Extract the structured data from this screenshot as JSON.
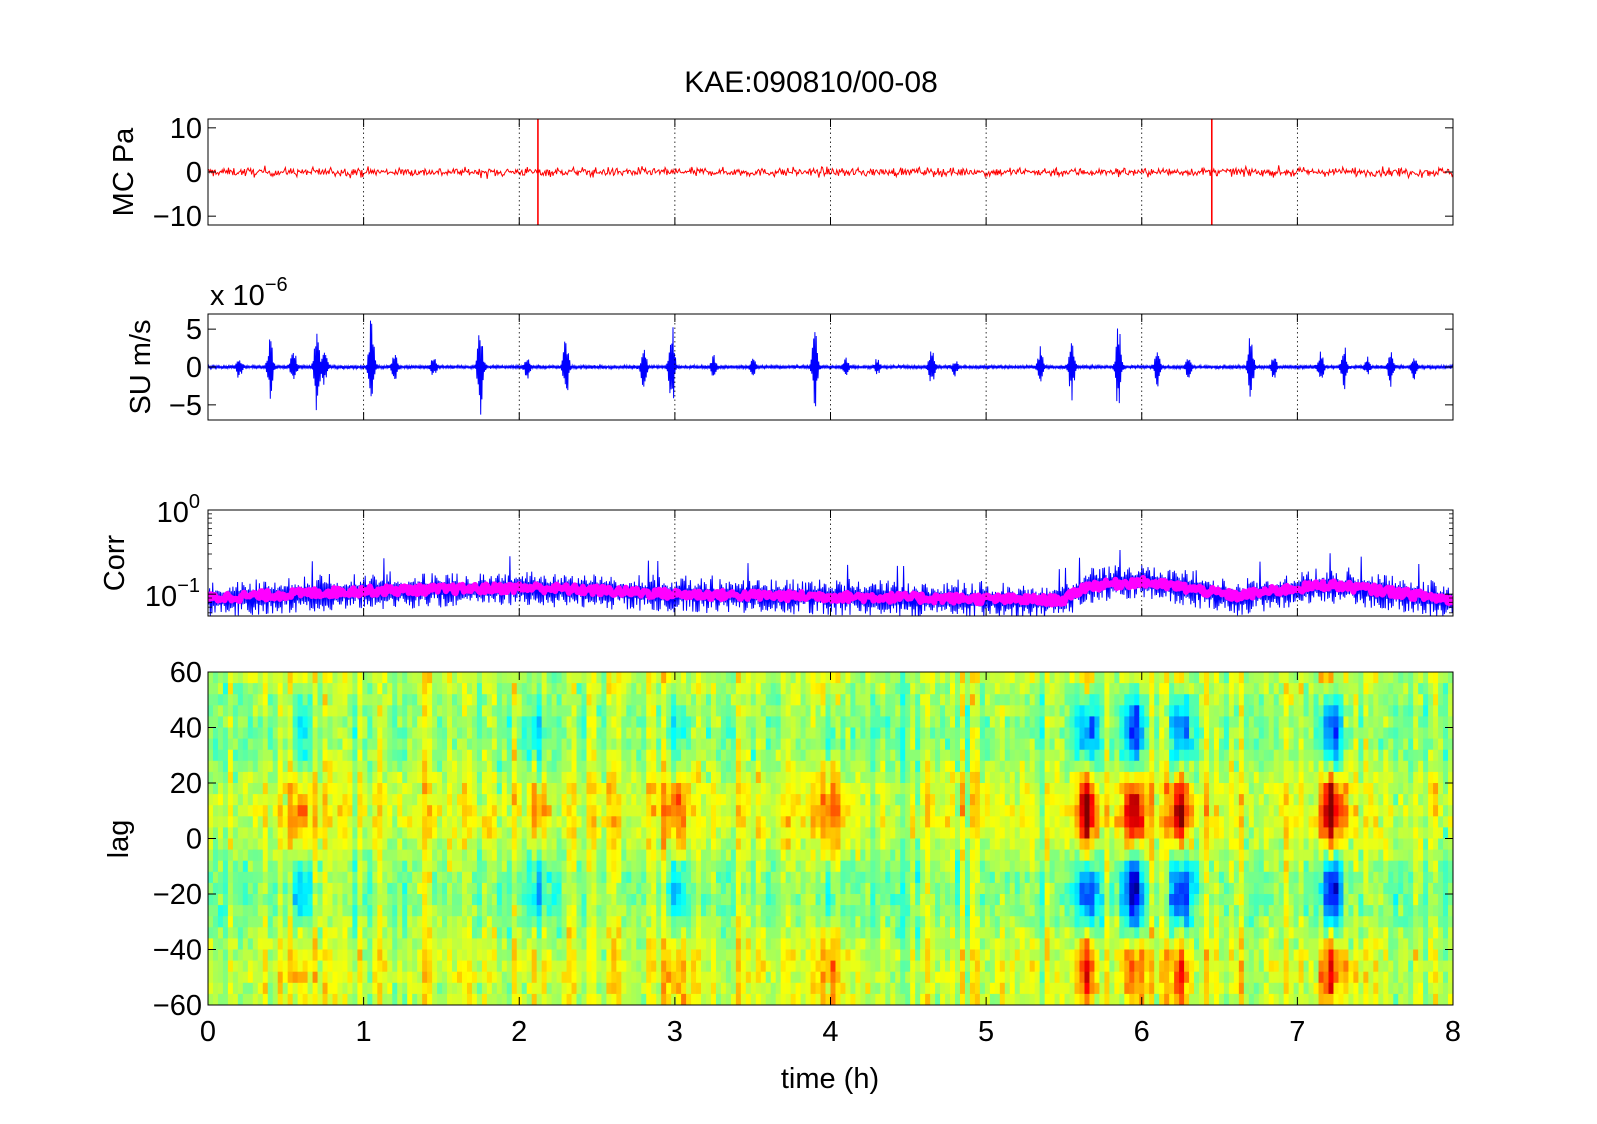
{
  "figure": {
    "title": "KAE:090810/00-08",
    "x_axis_label": "time (h)",
    "x_ticks": [
      "0",
      "1",
      "2",
      "3",
      "4",
      "5",
      "6",
      "7",
      "8"
    ]
  },
  "chart_data": [
    {
      "type": "line",
      "ylabel": "MC Pa",
      "xlim": [
        0,
        8
      ],
      "ylim": [
        -12,
        12
      ],
      "y_ticks": [
        "10",
        "0",
        "−10"
      ],
      "y_tick_values": [
        10,
        0,
        -10
      ],
      "grid": "x dotted",
      "series": [
        {
          "color": "#ff0000",
          "baseline_amplitude": 0.8,
          "spikes": [
            {
              "x": 2.12,
              "y_min": -12,
              "y_max": 12
            },
            {
              "x": 6.45,
              "y_min": -12,
              "y_max": 12
            }
          ]
        }
      ]
    },
    {
      "type": "line",
      "ylabel": "SU m/s",
      "multiplier_label": "x 10",
      "multiplier_exponent": "−6",
      "xlim": [
        0,
        8
      ],
      "ylim": [
        -7,
        7
      ],
      "y_ticks": [
        "5",
        "0",
        "−5"
      ],
      "y_tick_values": [
        5,
        0,
        -5
      ],
      "grid": "x dotted",
      "series": [
        {
          "color": "#0000ff",
          "baseline_amplitude": 0.25,
          "bursts": [
            [
              0.2,
              1.5
            ],
            [
              0.4,
              4.5
            ],
            [
              0.55,
              2.5
            ],
            [
              0.7,
              6.0
            ],
            [
              0.75,
              2.5
            ],
            [
              1.05,
              7.0
            ],
            [
              1.2,
              2.0
            ],
            [
              1.45,
              1.2
            ],
            [
              1.75,
              6.5
            ],
            [
              2.05,
              1.5
            ],
            [
              2.3,
              4.5
            ],
            [
              2.8,
              3.0
            ],
            [
              2.98,
              7.0
            ],
            [
              3.25,
              1.5
            ],
            [
              3.5,
              1.2
            ],
            [
              3.9,
              6.0
            ],
            [
              4.1,
              1.2
            ],
            [
              4.3,
              1.0
            ],
            [
              4.65,
              3.0
            ],
            [
              4.8,
              1.0
            ],
            [
              5.35,
              3.0
            ],
            [
              5.55,
              4.5
            ],
            [
              5.85,
              6.0
            ],
            [
              6.1,
              2.5
            ],
            [
              6.3,
              1.5
            ],
            [
              6.7,
              4.5
            ],
            [
              6.85,
              1.5
            ],
            [
              7.15,
              2.5
            ],
            [
              7.3,
              3.0
            ],
            [
              7.45,
              1.2
            ],
            [
              7.6,
              2.5
            ],
            [
              7.75,
              1.5
            ]
          ]
        }
      ]
    },
    {
      "type": "line",
      "ylabel": "Corr",
      "yscale": "log",
      "xlim": [
        0,
        8
      ],
      "ylim": [
        0.055,
        1
      ],
      "y_ticks": [
        {
          "base": "10",
          "exponent": "0",
          "value": 1
        },
        {
          "base": "10",
          "exponent": "−1",
          "value": 0.1
        }
      ],
      "grid": "x dotted",
      "series": [
        {
          "color": "#0000ff",
          "style": "noisy envelope",
          "level_profile": [
            [
              0,
              0.095
            ],
            [
              1.0,
              0.12
            ],
            [
              2.1,
              0.13
            ],
            [
              3.0,
              0.11
            ],
            [
              5.5,
              0.09
            ],
            [
              5.65,
              0.14
            ],
            [
              6.0,
              0.16
            ],
            [
              6.6,
              0.1
            ],
            [
              7.2,
              0.14
            ],
            [
              8,
              0.09
            ]
          ]
        },
        {
          "color": "#ff00ff",
          "style": "thick smoothed",
          "level_profile": [
            [
              0,
              0.09
            ],
            [
              0.5,
              0.1
            ],
            [
              1.0,
              0.11
            ],
            [
              2.1,
              0.12
            ],
            [
              3.0,
              0.1
            ],
            [
              5.5,
              0.085
            ],
            [
              5.65,
              0.125
            ],
            [
              6.0,
              0.14
            ],
            [
              6.6,
              0.095
            ],
            [
              7.2,
              0.13
            ],
            [
              8,
              0.085
            ]
          ]
        }
      ]
    },
    {
      "type": "heatmap",
      "ylabel": "lag",
      "xlim": [
        0,
        8
      ],
      "ylim": [
        -60,
        60
      ],
      "y_ticks": [
        "60",
        "40",
        "20",
        "0",
        "−20",
        "−40",
        "−60"
      ],
      "y_tick_values": [
        60,
        40,
        20,
        0,
        -20,
        -40,
        -60
      ],
      "colormap": "jet",
      "strong_events": [
        {
          "x": 5.65,
          "strength": 0.9
        },
        {
          "x": 5.95,
          "strength": 1.0
        },
        {
          "x": 6.25,
          "strength": 0.9
        },
        {
          "x": 7.22,
          "strength": 1.0
        }
      ],
      "weak_events": [
        {
          "x": 0.6,
          "strength": 0.4
        },
        {
          "x": 2.12,
          "strength": 0.35
        },
        {
          "x": 3.02,
          "strength": 0.45
        },
        {
          "x": 4.0,
          "strength": 0.3
        }
      ]
    }
  ]
}
